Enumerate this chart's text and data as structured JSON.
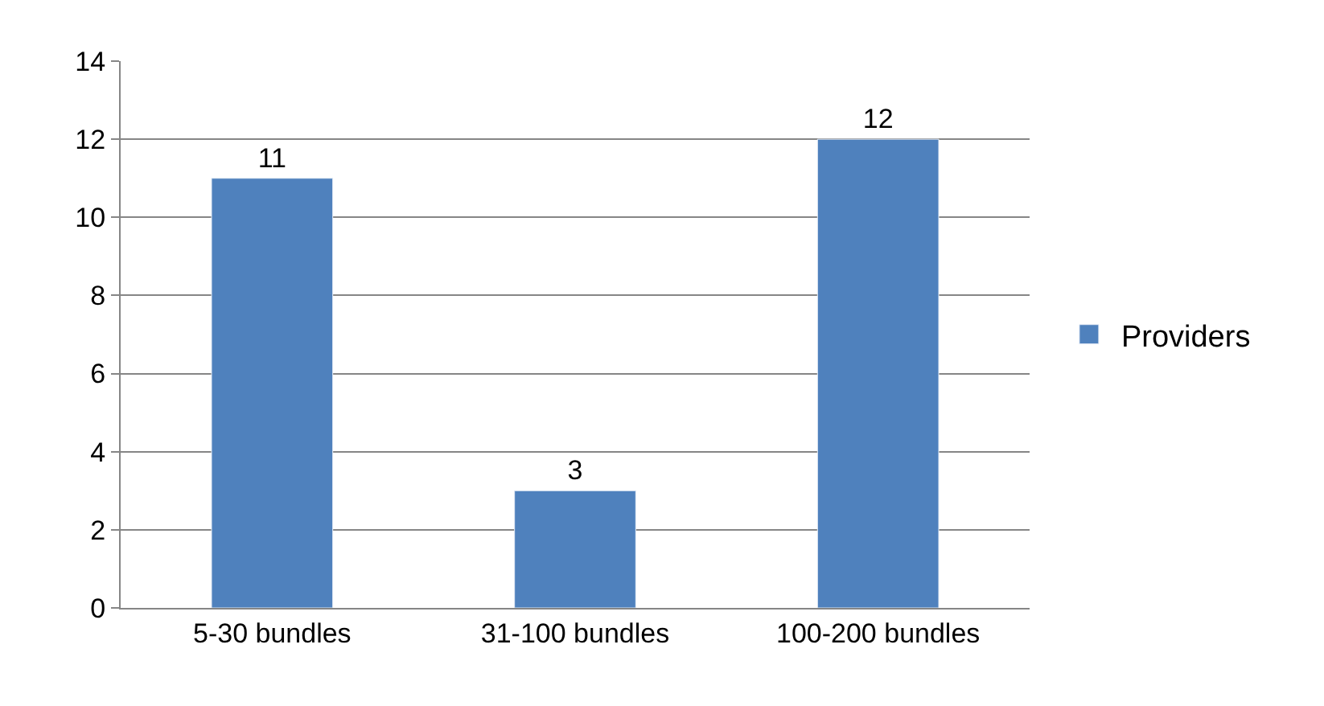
{
  "chart_data": {
    "type": "bar",
    "categories": [
      "5-30 bundles",
      "31-100 bundles",
      "100-200 bundles"
    ],
    "series": [
      {
        "name": "Providers",
        "color": "#4f81bd",
        "values": [
          11,
          3,
          12
        ]
      }
    ],
    "ylim": [
      0,
      14
    ],
    "yticks": [
      0,
      2,
      4,
      6,
      8,
      10,
      12,
      14
    ],
    "grid": "y",
    "legend": "right",
    "data_labels": true
  }
}
